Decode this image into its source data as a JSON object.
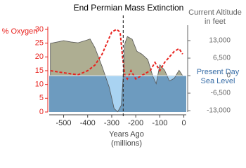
{
  "chart_data": {
    "type": "line",
    "title": "End Permian Mass Extinction",
    "ylabel": "% Oxygen",
    "y2label": [
      "Current Altitude",
      "in feet"
    ],
    "xlabel": [
      "Years Ago",
      "(millions)"
    ],
    "annotation": [
      "Present Day",
      "Sea Level"
    ],
    "xlim": [
      -560,
      10
    ],
    "xticks": [
      -500,
      -400,
      -300,
      -200,
      -100,
      0
    ],
    "ylim": [
      0,
      31
    ],
    "yticks": [
      0,
      5,
      10,
      15,
      20,
      25,
      30
    ],
    "y2lim": [
      -13500,
      18200
    ],
    "y2ticks": [
      {
        "value": 13000,
        "label": "13,000"
      },
      {
        "value": 6500,
        "label": "6,500"
      },
      0,
      {
        "value": -6500,
        "label": "-6,500"
      },
      {
        "value": -13000,
        "label": "-13,000"
      }
    ],
    "vline": -252,
    "series": [
      {
        "name": "Altitude",
        "axis": "y2",
        "color": "#aeae92",
        "below_color": "#a9d3f2",
        "x": [
          -555,
          -520,
          -500,
          -470,
          -440,
          -410,
          -390,
          -370,
          -340,
          -310,
          -290,
          -275,
          -260,
          -252,
          -245,
          -235,
          -215,
          -195,
          -175,
          -150,
          -130,
          -115,
          -100,
          -80,
          -60,
          -40,
          -20,
          -5
        ],
        "values": [
          12000,
          12600,
          13000,
          12500,
          12200,
          13000,
          13600,
          10400,
          3400,
          -4400,
          -12200,
          -13400,
          -11000,
          0,
          12000,
          14500,
          13500,
          9000,
          8000,
          6000,
          0,
          -3000,
          4000,
          2000,
          -2000,
          -1000,
          2000,
          0
        ]
      },
      {
        "name": "Oxygen",
        "axis": "y",
        "color": "#e8231f",
        "x": [
          -555,
          -520,
          -480,
          -440,
          -400,
          -370,
          -340,
          -320,
          -300,
          -280,
          -265,
          -255,
          -245,
          -235,
          -220,
          -200,
          -180,
          -160,
          -140,
          -120,
          -100,
          -80,
          -60,
          -40,
          -20,
          -5
        ],
        "values": [
          15,
          14.5,
          14,
          13.5,
          15,
          17,
          21,
          25,
          29,
          30,
          29,
          20,
          13,
          12,
          15,
          12,
          13,
          14,
          15,
          18,
          15,
          18,
          20,
          22,
          23,
          21
        ]
      }
    ]
  }
}
